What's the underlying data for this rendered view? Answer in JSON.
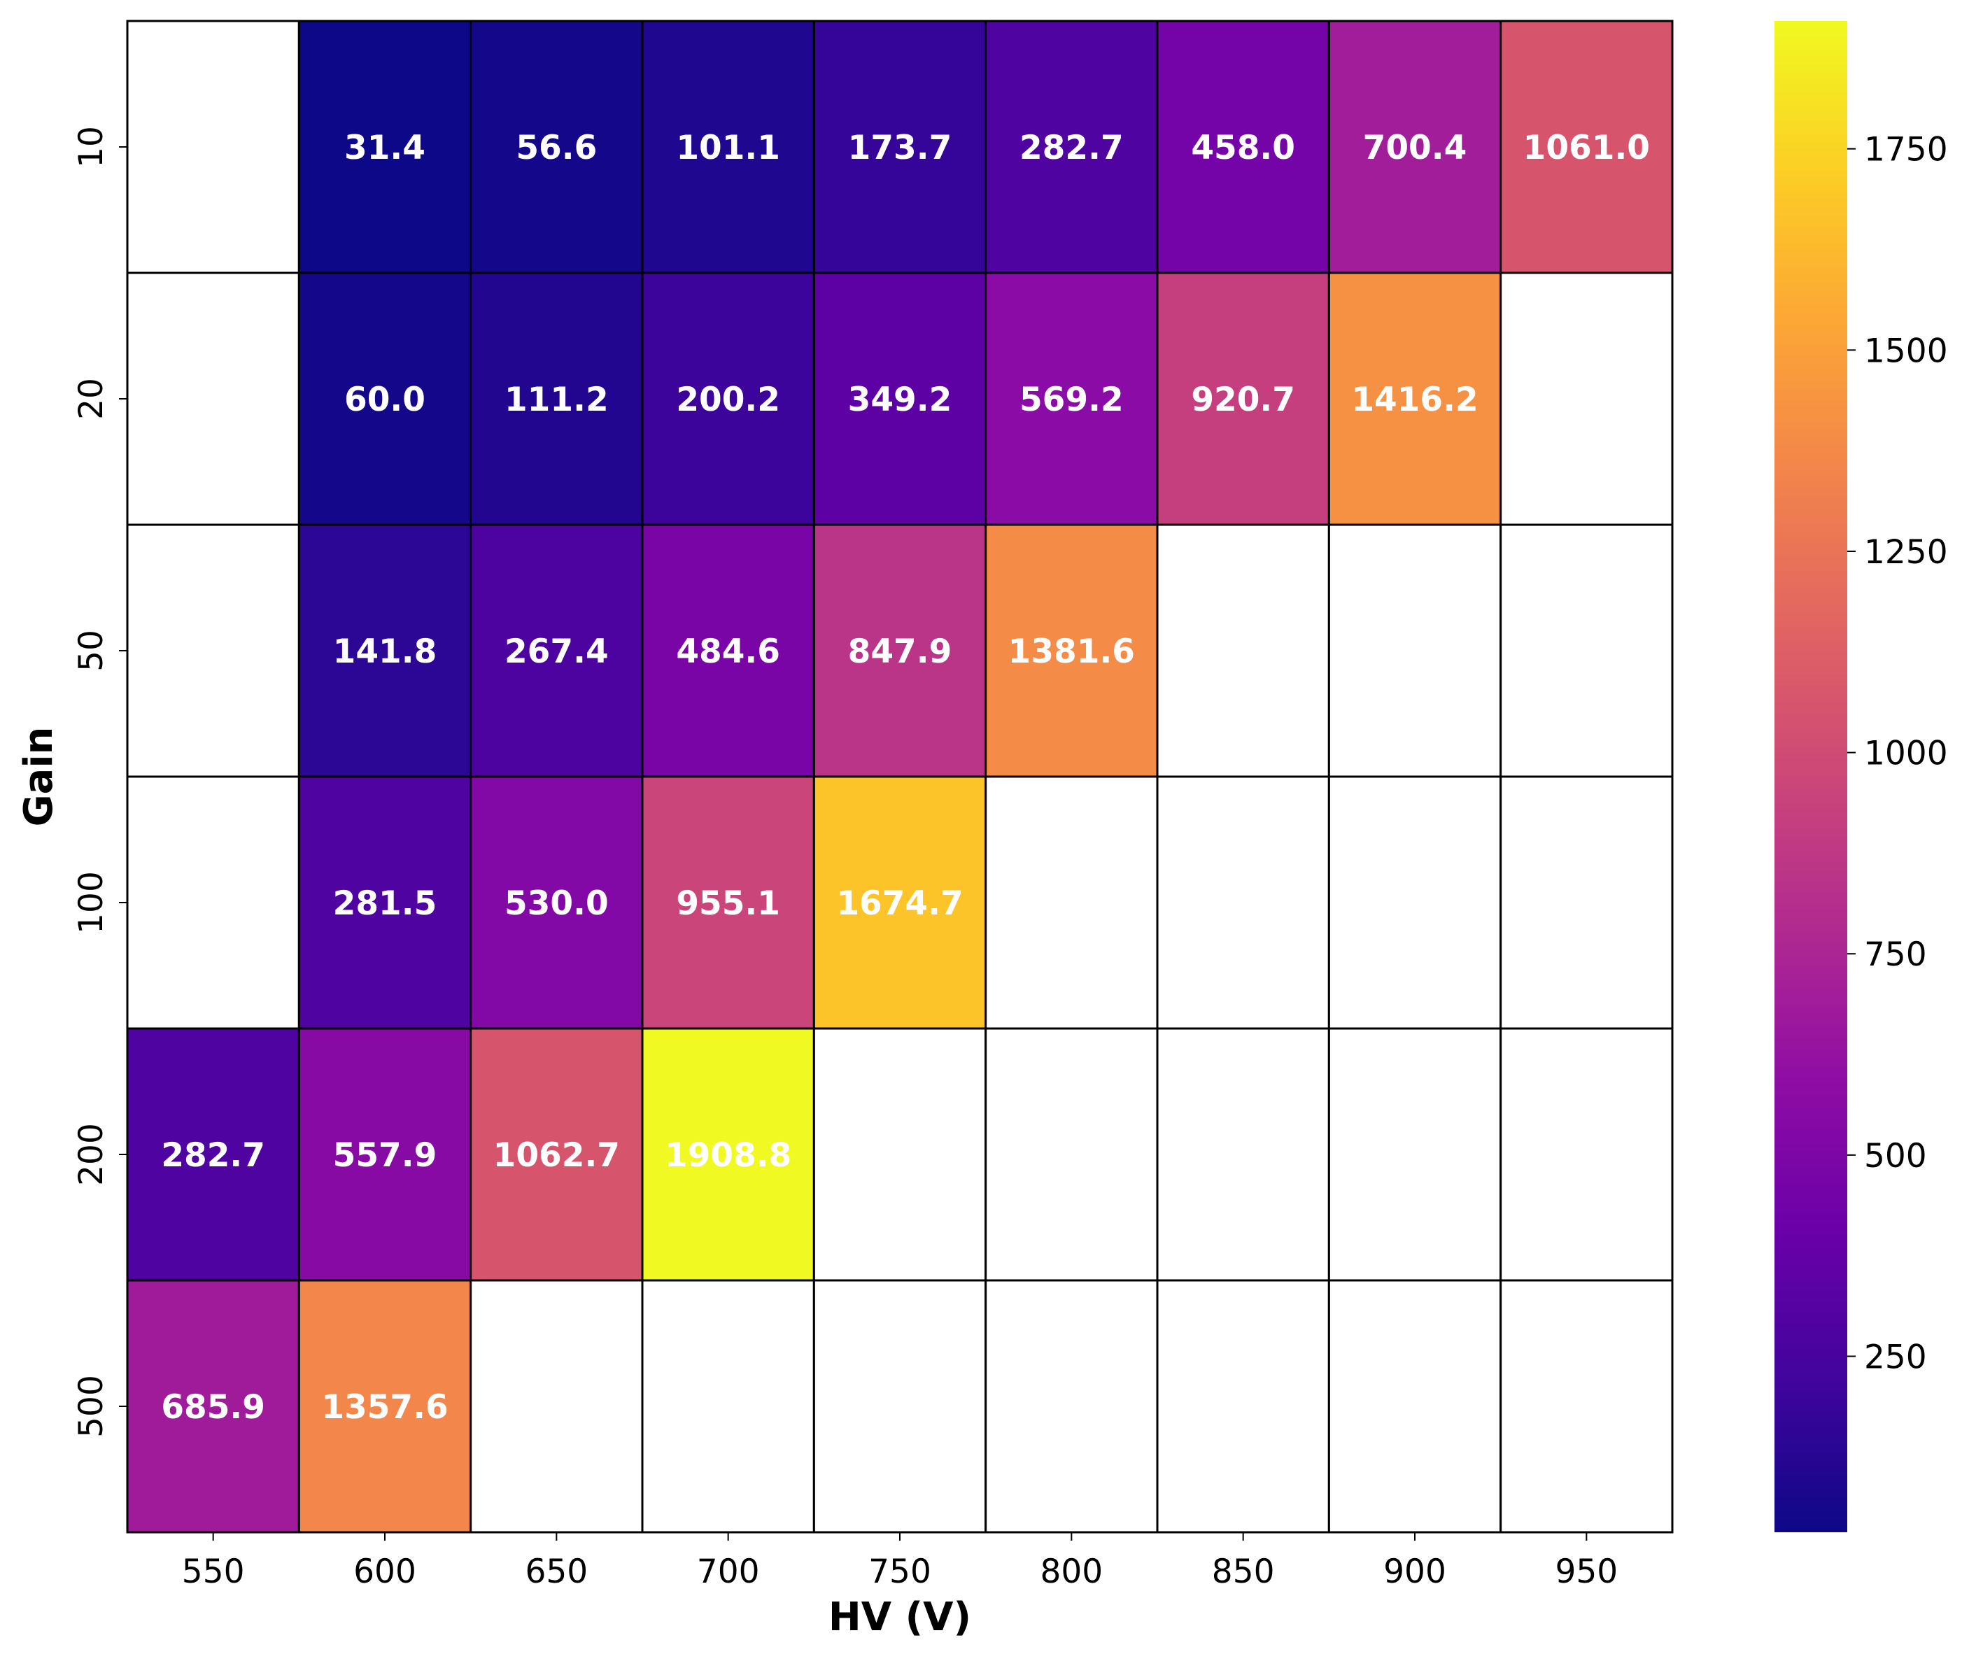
{
  "chart_data": {
    "type": "heatmap",
    "colormap": "plasma",
    "xlabel": "HV (V)",
    "ylabel": "Gain",
    "x_categories": [
      "550",
      "600",
      "650",
      "700",
      "750",
      "800",
      "850",
      "900",
      "950"
    ],
    "y_categories": [
      "10",
      "20",
      "50",
      "100",
      "200",
      "500"
    ],
    "values": [
      [
        null,
        31.4,
        56.6,
        101.1,
        173.7,
        282.7,
        458.0,
        700.4,
        1061.0
      ],
      [
        null,
        60.0,
        111.2,
        200.2,
        349.2,
        569.2,
        920.7,
        1416.2,
        null
      ],
      [
        null,
        141.8,
        267.4,
        484.6,
        847.9,
        1381.6,
        null,
        null,
        null
      ],
      [
        null,
        281.5,
        530.0,
        955.1,
        1674.7,
        null,
        null,
        null,
        null
      ],
      [
        282.7,
        557.9,
        1062.7,
        1908.8,
        null,
        null,
        null,
        null,
        null
      ],
      [
        685.9,
        1357.6,
        null,
        null,
        null,
        null,
        null,
        null,
        null
      ]
    ],
    "value_labels": [
      [
        "",
        "31.4",
        "56.6",
        "101.1",
        "173.7",
        "282.7",
        "458.0",
        "700.4",
        "1061.0"
      ],
      [
        "",
        "60.0",
        "111.2",
        "200.2",
        "349.2",
        "569.2",
        "920.7",
        "1416.2",
        ""
      ],
      [
        "",
        "141.8",
        "267.4",
        "484.6",
        "847.9",
        "1381.6",
        "",
        "",
        ""
      ],
      [
        "",
        "281.5",
        "530.0",
        "955.1",
        "1674.7",
        "",
        "",
        "",
        ""
      ],
      [
        "282.7",
        "557.9",
        "1062.7",
        "1908.8",
        "",
        "",
        "",
        "",
        ""
      ],
      [
        "685.9",
        "1357.6",
        "",
        "",
        "",
        "",
        "",
        "",
        ""
      ]
    ],
    "colorbar": {
      "range": [
        31.4,
        1908.8
      ],
      "ticks": [
        250,
        500,
        750,
        1000,
        1250,
        1500,
        1750
      ],
      "tick_labels": [
        "250",
        "500",
        "750",
        "1000",
        "1250",
        "1500",
        "1750"
      ]
    },
    "missing_cell_color": "#ffffff",
    "grid": true,
    "legend": "colorbar-right"
  }
}
